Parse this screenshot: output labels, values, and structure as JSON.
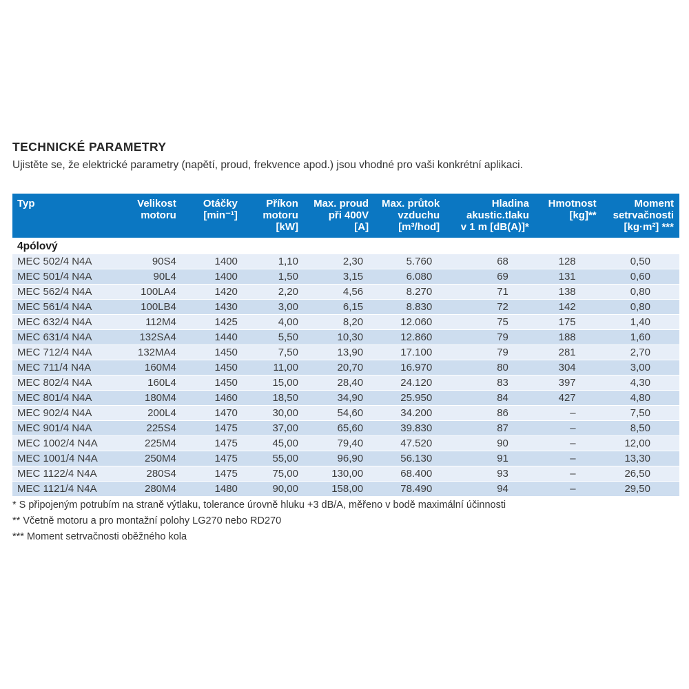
{
  "page": {
    "title": "TECHNICKÉ PARAMETRY",
    "subtitle": "Ujistěte se, že elektrické parametry (napětí, proud, frekvence apod.) jsou vhodné pro vaši konkrétní aplikaci."
  },
  "colors": {
    "header_bg": "#0b77c2",
    "row_light": "#e7eef8",
    "row_dark": "#cdddef",
    "header_text": "#ffffff",
    "body_text": "#3c3c3c"
  },
  "table": {
    "section_label": "4pólový",
    "columns": [
      {
        "id": "typ",
        "lines": [
          "Typ"
        ]
      },
      {
        "id": "velikost-motoru",
        "lines": [
          "Velikost",
          "motoru"
        ]
      },
      {
        "id": "otacky",
        "lines": [
          "Otáčky",
          "[min⁻¹]"
        ]
      },
      {
        "id": "prikon-motoru",
        "lines": [
          "Příkon",
          "motoru",
          "[kW]"
        ]
      },
      {
        "id": "max-proud",
        "lines": [
          "Max. proud",
          "při 400V",
          "[A]"
        ]
      },
      {
        "id": "max-prutok",
        "lines": [
          "Max. průtok",
          "vzduchu",
          "[m³/hod]"
        ]
      },
      {
        "id": "hladina-tlaku",
        "lines": [
          "Hladina",
          "akustic.tlaku",
          "v 1 m [dB(A)]*"
        ]
      },
      {
        "id": "hmotnost",
        "lines": [
          "Hmotnost",
          "[kg]**"
        ]
      },
      {
        "id": "moment",
        "lines": [
          "Moment",
          "setrvačnosti",
          "[kg·m²] ***"
        ]
      }
    ],
    "rows": [
      [
        "MEC 502/4 N4A",
        "90S4",
        "1400",
        "1,10",
        "2,30",
        "5.760",
        "68",
        "128",
        "0,50"
      ],
      [
        "MEC 501/4 N4A",
        "90L4",
        "1400",
        "1,50",
        "3,15",
        "6.080",
        "69",
        "131",
        "0,60"
      ],
      [
        "MEC 562/4 N4A",
        "100LA4",
        "1420",
        "2,20",
        "4,56",
        "8.270",
        "71",
        "138",
        "0,80"
      ],
      [
        "MEC 561/4 N4A",
        "100LB4",
        "1430",
        "3,00",
        "6,15",
        "8.830",
        "72",
        "142",
        "0,80"
      ],
      [
        "MEC 632/4 N4A",
        "112M4",
        "1425",
        "4,00",
        "8,20",
        "12.060",
        "75",
        "175",
        "1,40"
      ],
      [
        "MEC 631/4 N4A",
        "132SA4",
        "1440",
        "5,50",
        "10,30",
        "12.860",
        "79",
        "188",
        "1,60"
      ],
      [
        "MEC 712/4 N4A",
        "132MA4",
        "1450",
        "7,50",
        "13,90",
        "17.100",
        "79",
        "281",
        "2,70"
      ],
      [
        "MEC 711/4 N4A",
        "160M4",
        "1450",
        "11,00",
        "20,70",
        "16.970",
        "80",
        "304",
        "3,00"
      ],
      [
        "MEC 802/4 N4A",
        "160L4",
        "1450",
        "15,00",
        "28,40",
        "24.120",
        "83",
        "397",
        "4,30"
      ],
      [
        "MEC 801/4 N4A",
        "180M4",
        "1460",
        "18,50",
        "34,90",
        "25.950",
        "84",
        "427",
        "4,80"
      ],
      [
        "MEC 902/4 N4A",
        "200L4",
        "1470",
        "30,00",
        "54,60",
        "34.200",
        "86",
        "–",
        "7,50"
      ],
      [
        "MEC 901/4 N4A",
        "225S4",
        "1475",
        "37,00",
        "65,60",
        "39.830",
        "87",
        "–",
        "8,50"
      ],
      [
        "MEC 1002/4 N4A",
        "225M4",
        "1475",
        "45,00",
        "79,40",
        "47.520",
        "90",
        "–",
        "12,00"
      ],
      [
        "MEC 1001/4 N4A",
        "250M4",
        "1475",
        "55,00",
        "96,90",
        "56.130",
        "91",
        "–",
        "13,30"
      ],
      [
        "MEC 1122/4 N4A",
        "280S4",
        "1475",
        "75,00",
        "130,00",
        "68.400",
        "93",
        "–",
        "26,50"
      ],
      [
        "MEC 1121/4 N4A",
        "280M4",
        "1480",
        "90,00",
        "158,00",
        "78.490",
        "94",
        "–",
        "29,50"
      ]
    ]
  },
  "footnotes": [
    "* S připojeným potrubím na straně výtlaku, tolerance úrovně hluku +3 dB/A, měřeno v bodě maximální účinnosti",
    "** Včetně motoru a pro montažní polohy LG270 nebo RD270",
    "*** Moment setrvačnosti oběžného kola"
  ]
}
